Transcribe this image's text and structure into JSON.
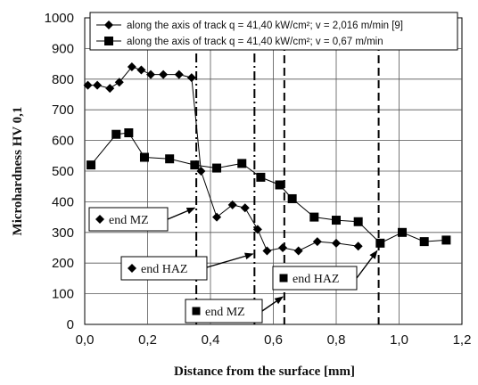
{
  "chart_data": {
    "type": "line",
    "xlabel": "Distance from the surface [mm]",
    "ylabel": "Microhardness HV 0,1",
    "xlim": [
      0,
      1.2
    ],
    "ylim": [
      0,
      1000
    ],
    "x_ticks": [
      "0,0",
      "0,2",
      "0,4",
      "0,6",
      "0,8",
      "1,0",
      "1,2"
    ],
    "y_ticks": [
      "0",
      "100",
      "200",
      "300",
      "400",
      "500",
      "600",
      "700",
      "800",
      "900",
      "1000"
    ],
    "grid": true,
    "legend_position": "top",
    "series": [
      {
        "name": "along the axis of track q = 41,40 kW/cm²; v = 2,016 m/min [9]",
        "marker": "diamond",
        "color": "#000000",
        "x": [
          0.01,
          0.04,
          0.08,
          0.11,
          0.15,
          0.18,
          0.21,
          0.25,
          0.3,
          0.34,
          0.37,
          0.42,
          0.47,
          0.51,
          0.55,
          0.58,
          0.63,
          0.68,
          0.74,
          0.8,
          0.87
        ],
        "y": [
          780,
          780,
          770,
          790,
          840,
          830,
          815,
          815,
          815,
          805,
          500,
          350,
          390,
          380,
          310,
          240,
          250,
          240,
          270,
          265,
          255
        ]
      },
      {
        "name": "along the axis of track q = 41,40 kW/cm²; v = 0,67 m/min",
        "marker": "square",
        "color": "#000000",
        "x": [
          0.02,
          0.1,
          0.14,
          0.19,
          0.27,
          0.35,
          0.42,
          0.5,
          0.56,
          0.62,
          0.66,
          0.73,
          0.8,
          0.87,
          0.94,
          1.01,
          1.08,
          1.15
        ],
        "y": [
          520,
          620,
          625,
          545,
          540,
          520,
          510,
          525,
          480,
          455,
          410,
          350,
          340,
          335,
          265,
          300,
          270,
          275
        ]
      }
    ],
    "reference_lines": [
      {
        "x": 0.355,
        "style": "dash-dot"
      },
      {
        "x": 0.54,
        "style": "dash-dot"
      },
      {
        "x": 0.635,
        "style": "dashed"
      },
      {
        "x": 0.935,
        "style": "dashed"
      }
    ],
    "annotations": [
      {
        "text": "end MZ",
        "marker": "diamond",
        "arrow_to": [
          0.35,
          380
        ]
      },
      {
        "text": "end HAZ",
        "marker": "diamond",
        "arrow_to": [
          0.535,
          230
        ]
      },
      {
        "text": "end HAZ",
        "marker": "square",
        "arrow_to": [
          0.93,
          240
        ]
      },
      {
        "text": "end MZ",
        "marker": "square",
        "arrow_to": [
          0.63,
          90
        ]
      }
    ]
  }
}
